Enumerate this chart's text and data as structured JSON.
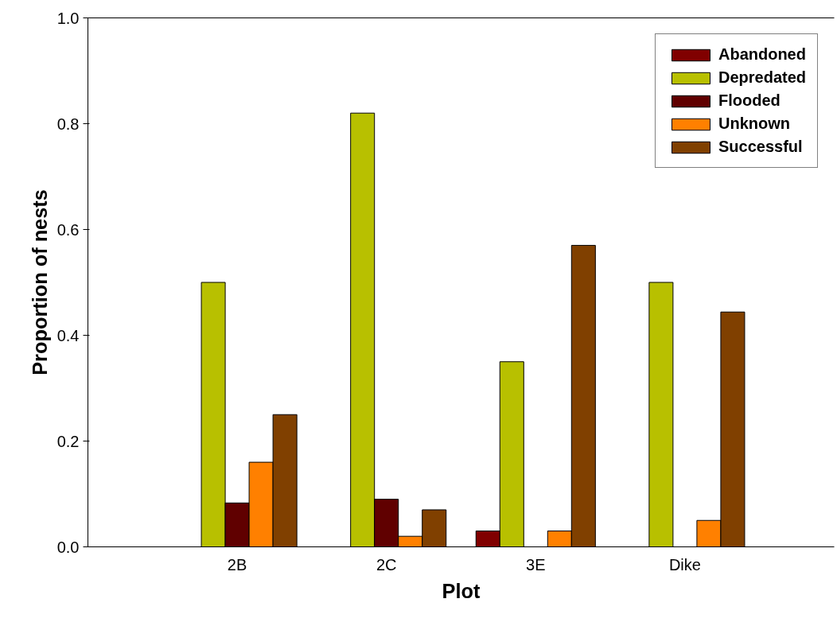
{
  "chart_data": {
    "type": "bar",
    "xlabel": "Plot",
    "ylabel": "Proportion of nests",
    "categories": [
      "2B",
      "2C",
      "3E",
      "Dike"
    ],
    "series": [
      {
        "name": "Abandoned",
        "color": "#800000",
        "values": [
          null,
          null,
          0.03,
          null
        ]
      },
      {
        "name": "Depredated",
        "color": "#b8c000",
        "values": [
          0.5,
          0.82,
          0.35,
          0.5
        ]
      },
      {
        "name": "Flooded",
        "color": "#600000",
        "values": [
          0.083,
          0.09,
          null,
          null
        ]
      },
      {
        "name": "Unknown",
        "color": "#ff8000",
        "values": [
          0.16,
          0.02,
          0.03,
          0.05
        ]
      },
      {
        "name": "Successful",
        "color": "#804000",
        "values": [
          0.25,
          0.07,
          0.57,
          0.444
        ]
      }
    ],
    "ylim": [
      0,
      1.0
    ],
    "yticks": [
      {
        "value": 0,
        "label": "0.0"
      },
      0.2,
      0.4,
      0.6,
      0.8,
      {
        "value": 1,
        "label": "1.0"
      }
    ],
    "grid": false,
    "legend": "top right"
  }
}
